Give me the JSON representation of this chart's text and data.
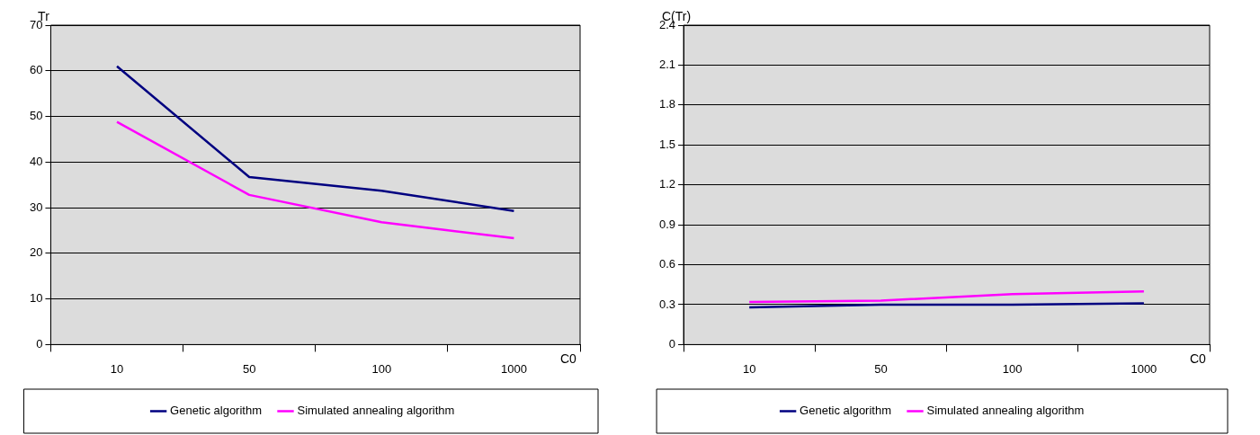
{
  "chart_data": [
    {
      "type": "line",
      "xlabel": "C0",
      "ylabel": "Tr",
      "categories": [
        "10",
        "50",
        "100",
        "1000"
      ],
      "ylim": [
        0,
        70
      ],
      "yticks": [
        0,
        10,
        20,
        30,
        40,
        50,
        60,
        70
      ],
      "grid": "y",
      "legend": "bottom",
      "marker": "none",
      "series": [
        {
          "name": "Genetic algorithm",
          "color": "#000080",
          "values": [
            61,
            36.7,
            33.7,
            29.3
          ]
        },
        {
          "name": "Simulated annealing algorithm",
          "color": "#ff00ff",
          "values": [
            48.8,
            32.8,
            26.8,
            23.3
          ]
        }
      ]
    },
    {
      "type": "line",
      "xlabel": "C0",
      "ylabel": "C(Tr)",
      "categories": [
        "10",
        "50",
        "100",
        "1000"
      ],
      "ylim": [
        0,
        2.4
      ],
      "yticks": [
        0,
        0.3,
        0.6,
        0.9,
        1.2,
        1.5,
        1.8,
        2.1,
        2.4
      ],
      "grid": "y",
      "legend": "bottom",
      "marker": "none",
      "series": [
        {
          "name": "Genetic algorithm",
          "color": "#000080",
          "values": [
            0.28,
            0.3,
            0.3,
            0.31
          ]
        },
        {
          "name": "Simulated annealing algorithm",
          "color": "#ff00ff",
          "values": [
            0.32,
            0.33,
            0.38,
            0.4
          ]
        }
      ]
    }
  ]
}
